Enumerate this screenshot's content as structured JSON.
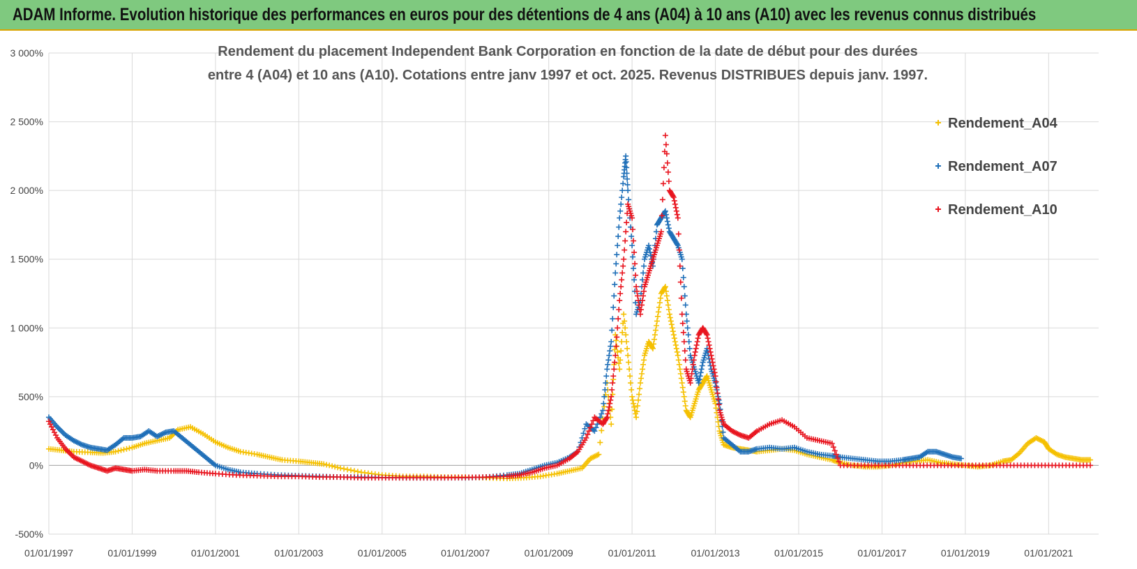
{
  "banner": {
    "text": "ADAM Informe. Evolution historique des performances en euros pour des détentions de 4 ans (A04) à 10 ans (A10) avec les revenus connus distribués",
    "background": "#7fc97f",
    "border": "#d9a400"
  },
  "chart_data": {
    "type": "scatter",
    "title_lines": [
      "Rendement du placement Independent Bank Corporation en fonction de la date de début pour des durées",
      "entre 4 (A04) et 10 ans (A10). Cotations entre janv 1997 et oct. 2025.  Revenus DISTRIBUES depuis janv. 1997."
    ],
    "xlabel": "",
    "ylabel": "",
    "ylim": [
      -500,
      3000
    ],
    "yticks": [
      -500,
      0,
      500,
      1000,
      1500,
      2000,
      2500,
      3000
    ],
    "ytick_labels": [
      "-500%",
      "0%",
      "500%",
      "1 000%",
      "1 500%",
      "2 000%",
      "2 500%",
      "3 000%"
    ],
    "xlim": [
      1997.0,
      2022.2
    ],
    "xticks": [
      1997,
      1999,
      2001,
      2003,
      2005,
      2007,
      2009,
      2011,
      2013,
      2015,
      2017,
      2019,
      2021
    ],
    "xtick_labels": [
      "01/01/1997",
      "01/01/1999",
      "01/01/2001",
      "01/01/2003",
      "01/01/2005",
      "01/01/2007",
      "01/01/2009",
      "01/01/2011",
      "01/01/2013",
      "01/01/2015",
      "01/01/2017",
      "01/01/2019",
      "01/01/2021"
    ],
    "grid": true,
    "legend_position": "top-right",
    "marker": "+",
    "series": [
      {
        "name": "Rendement_A04",
        "color": "#f5c000",
        "x": [
          1997.0,
          1997.3,
          1997.6,
          1998.0,
          1998.3,
          1998.6,
          1999.0,
          1999.3,
          1999.6,
          1999.9,
          2000.1,
          2000.4,
          2000.7,
          2001.0,
          2001.3,
          2001.6,
          2002.0,
          2002.3,
          2002.6,
          2003.0,
          2003.3,
          2003.6,
          2004.0,
          2004.5,
          2005.0,
          2005.5,
          2006.0,
          2006.5,
          2007.0,
          2007.5,
          2008.0,
          2008.4,
          2008.8,
          2009.2,
          2009.5,
          2009.8,
          2010.0,
          2010.2,
          2010.4,
          2010.5,
          2010.6,
          2010.7,
          2010.8,
          2010.9,
          2011.0,
          2011.1,
          2011.2,
          2011.3,
          2011.4,
          2011.5,
          2011.6,
          2011.7,
          2011.8,
          2011.9,
          2012.0,
          2012.1,
          2012.2,
          2012.3,
          2012.4,
          2012.5,
          2012.6,
          2012.7,
          2012.8,
          2012.9,
          2013.0,
          2013.1,
          2013.2,
          2013.4,
          2013.6,
          2013.8,
          2014.0,
          2014.3,
          2014.6,
          2014.9,
          2015.2,
          2015.5,
          2015.8,
          2016.0,
          2016.3,
          2016.6,
          2016.9,
          2017.2,
          2017.5,
          2017.8,
          2018.1,
          2018.4,
          2018.7,
          2019.0,
          2019.3,
          2019.6,
          2019.9,
          2020.1,
          2020.3,
          2020.5,
          2020.7,
          2020.9,
          2021.0,
          2021.2,
          2021.4,
          2021.6,
          2021.8,
          2022.0
        ],
        "y": [
          120,
          110,
          100,
          95,
          90,
          100,
          130,
          160,
          180,
          200,
          260,
          280,
          230,
          170,
          130,
          100,
          80,
          60,
          40,
          30,
          20,
          10,
          -20,
          -50,
          -70,
          -80,
          -80,
          -85,
          -85,
          -90,
          -95,
          -90,
          -80,
          -60,
          -40,
          -20,
          50,
          80,
          600,
          300,
          950,
          700,
          1100,
          800,
          500,
          350,
          600,
          800,
          900,
          850,
          1050,
          1250,
          1300,
          1100,
          950,
          800,
          600,
          400,
          350,
          450,
          550,
          600,
          650,
          550,
          450,
          250,
          150,
          130,
          120,
          110,
          100,
          110,
          120,
          110,
          80,
          60,
          40,
          20,
          0,
          -10,
          -10,
          0,
          20,
          30,
          40,
          20,
          10,
          0,
          -10,
          0,
          30,
          40,
          90,
          160,
          200,
          170,
          120,
          80,
          60,
          50,
          40,
          40
        ]
      },
      {
        "name": "Rendement_A07",
        "color": "#1f6fb8",
        "x": [
          1997.0,
          1997.2,
          1997.4,
          1997.6,
          1997.8,
          1998.0,
          1998.2,
          1998.4,
          1998.6,
          1998.8,
          1999.0,
          1999.2,
          1999.4,
          1999.6,
          1999.8,
          2000.0,
          2000.2,
          2000.4,
          2000.6,
          2000.8,
          2001.0,
          2001.3,
          2001.6,
          2002.0,
          2002.5,
          2003.0,
          2003.5,
          2004.0,
          2004.5,
          2005.0,
          2005.5,
          2006.0,
          2006.5,
          2007.0,
          2007.5,
          2008.0,
          2008.3,
          2008.6,
          2008.9,
          2009.2,
          2009.5,
          2009.7,
          2009.9,
          2010.1,
          2010.3,
          2010.4,
          2010.5,
          2010.6,
          2010.7,
          2010.8,
          2010.85,
          2010.9,
          2011.0,
          2011.1,
          2011.2,
          2011.3,
          2011.4,
          2011.5,
          2011.6,
          2011.7,
          2011.8,
          2011.9,
          2012.0,
          2012.1,
          2012.2,
          2012.3,
          2012.4,
          2012.5,
          2012.6,
          2012.7,
          2012.8,
          2012.9,
          2013.0,
          2013.1,
          2013.2,
          2013.4,
          2013.6,
          2013.8,
          2014.0,
          2014.3,
          2014.6,
          2014.9,
          2015.2,
          2015.5,
          2015.8,
          2016.0,
          2016.3,
          2016.6,
          2016.9,
          2017.2,
          2017.5,
          2017.7,
          2017.9,
          2018.1,
          2018.3,
          2018.5,
          2018.7,
          2018.9
        ],
        "y": [
          350,
          280,
          220,
          180,
          150,
          130,
          120,
          110,
          150,
          200,
          200,
          210,
          250,
          210,
          240,
          250,
          200,
          150,
          100,
          50,
          0,
          -30,
          -50,
          -60,
          -70,
          -75,
          -80,
          -85,
          -85,
          -88,
          -90,
          -90,
          -90,
          -90,
          -85,
          -70,
          -60,
          -30,
          0,
          20,
          60,
          100,
          300,
          250,
          400,
          700,
          900,
          1400,
          1800,
          2100,
          2250,
          2000,
          1600,
          1100,
          1200,
          1500,
          1600,
          1450,
          1750,
          1800,
          1850,
          1700,
          1650,
          1600,
          1500,
          1100,
          800,
          700,
          600,
          750,
          850,
          700,
          600,
          450,
          200,
          150,
          100,
          100,
          120,
          130,
          120,
          130,
          100,
          80,
          70,
          60,
          50,
          40,
          30,
          30,
          40,
          50,
          60,
          100,
          100,
          80,
          60,
          50
        ]
      },
      {
        "name": "Rendement_A10",
        "color": "#e8141e",
        "x": [
          1997.0,
          1997.2,
          1997.4,
          1997.6,
          1997.8,
          1998.0,
          1998.2,
          1998.4,
          1998.6,
          1998.8,
          1999.0,
          1999.3,
          1999.6,
          2000.0,
          2000.3,
          2000.6,
          2001.0,
          2001.5,
          2002.0,
          2002.5,
          2003.0,
          2003.5,
          2004.0,
          2004.5,
          2005.0,
          2005.5,
          2006.0,
          2006.5,
          2007.0,
          2007.5,
          2008.0,
          2008.3,
          2008.6,
          2008.9,
          2009.2,
          2009.5,
          2009.7,
          2009.9,
          2010.1,
          2010.3,
          2010.4,
          2010.5,
          2010.6,
          2010.7,
          2010.8,
          2010.9,
          2011.0,
          2011.1,
          2011.2,
          2011.3,
          2011.4,
          2011.5,
          2011.6,
          2011.7,
          2011.8,
          2011.9,
          2012.0,
          2012.1,
          2012.2,
          2012.3,
          2012.4,
          2012.5,
          2012.6,
          2012.7,
          2012.8,
          2012.9,
          2013.0,
          2013.1,
          2013.2,
          2013.4,
          2013.6,
          2013.8,
          2014.0,
          2014.3,
          2014.6,
          2014.9,
          2015.2,
          2015.5,
          2015.8,
          2016.0,
          2016.5,
          2017.0,
          2017.5,
          2018.0,
          2018.5,
          2019.0,
          2019.5,
          2020.0,
          2020.5,
          2021.0,
          2021.5,
          2022.0
        ],
        "y": [
          320,
          200,
          120,
          60,
          30,
          0,
          -20,
          -40,
          -20,
          -30,
          -40,
          -30,
          -40,
          -40,
          -40,
          -50,
          -60,
          -70,
          -75,
          -80,
          -80,
          -85,
          -85,
          -90,
          -90,
          -90,
          -90,
          -90,
          -88,
          -85,
          -80,
          -70,
          -50,
          -20,
          0,
          50,
          100,
          200,
          350,
          300,
          350,
          500,
          800,
          1200,
          1500,
          1900,
          1800,
          1300,
          1100,
          1300,
          1400,
          1500,
          1600,
          1700,
          2400,
          2000,
          1950,
          1800,
          1100,
          700,
          600,
          800,
          950,
          1000,
          950,
          800,
          650,
          400,
          300,
          250,
          220,
          200,
          250,
          300,
          330,
          280,
          200,
          180,
          160,
          0,
          0,
          0,
          0,
          0,
          0,
          0,
          0,
          0,
          0,
          0,
          0,
          0
        ]
      }
    ]
  }
}
